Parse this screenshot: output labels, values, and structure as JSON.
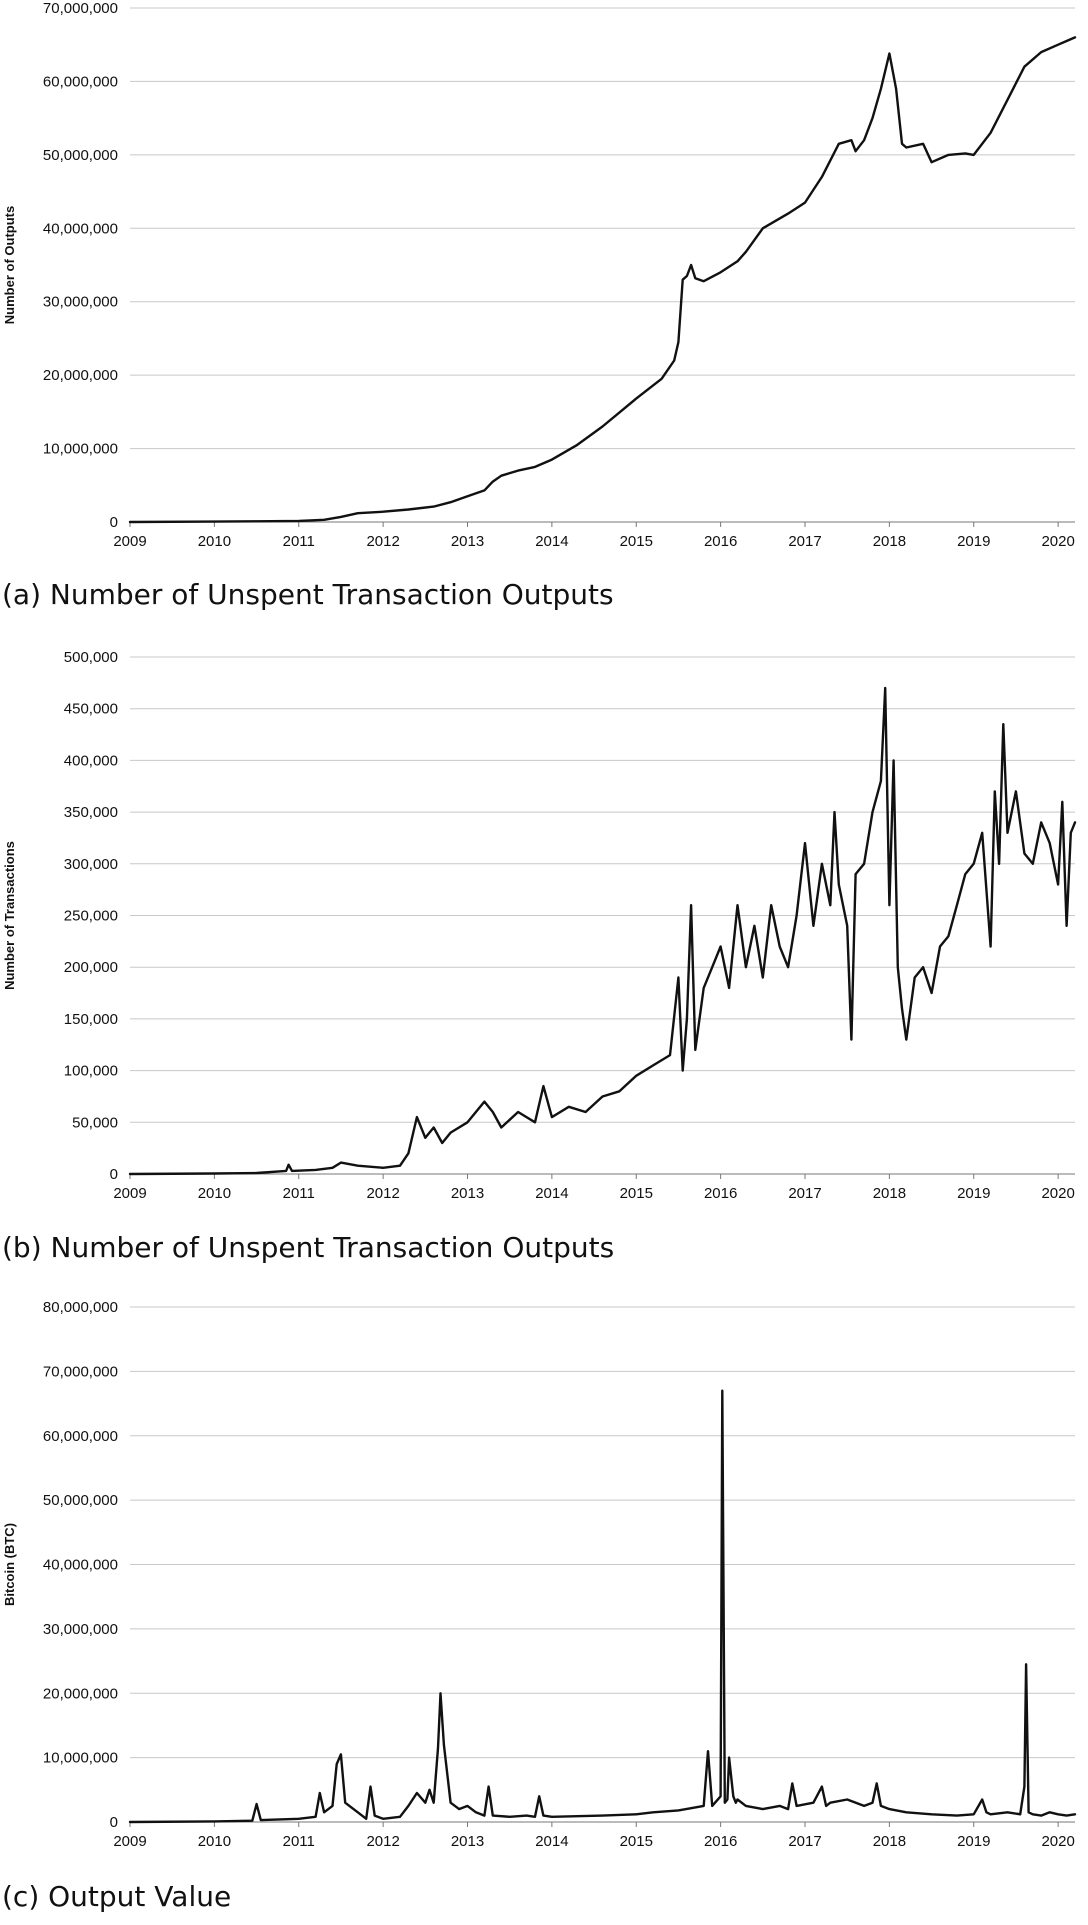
{
  "chart_data": [
    {
      "type": "line",
      "caption": "(a) Number of Unspent Transaction Outputs",
      "ylabel": "Number of Outputs",
      "xlabel": "",
      "xlim": [
        2009,
        2020.2
      ],
      "ylim": [
        0,
        70000000
      ],
      "grid": true,
      "xticks": [
        "2009",
        "2010",
        "2011",
        "2012",
        "2013",
        "2014",
        "2015",
        "2016",
        "2017",
        "2018",
        "2019",
        "2020"
      ],
      "yticks": [
        "0",
        "10,000,000",
        "20,000,000",
        "30,000,000",
        "40,000,000",
        "50,000,000",
        "60,000,000",
        "70,000,000"
      ],
      "series": [
        {
          "x": [
            2009.0,
            2010.0,
            2010.5,
            2011.0,
            2011.3,
            2011.5,
            2011.7,
            2012.0,
            2012.3,
            2012.6,
            2012.8,
            2013.0,
            2013.2,
            2013.3,
            2013.4,
            2013.6,
            2013.8,
            2014.0,
            2014.3,
            2014.6,
            2015.0,
            2015.3,
            2015.45,
            2015.5,
            2015.55,
            2015.6,
            2015.65,
            2015.7,
            2015.8,
            2016.0,
            2016.2,
            2016.3,
            2016.5,
            2016.8,
            2017.0,
            2017.2,
            2017.4,
            2017.55,
            2017.6,
            2017.7,
            2017.8,
            2017.9,
            2018.0,
            2018.08,
            2018.15,
            2018.2,
            2018.4,
            2018.5,
            2018.7,
            2018.9,
            2019.0,
            2019.2,
            2019.4,
            2019.6,
            2019.8,
            2020.0,
            2020.1,
            2020.2
          ],
          "y": [
            0,
            50000,
            100000,
            150000,
            300000,
            700000,
            1200000,
            1400000,
            1700000,
            2100000,
            2700000,
            3500000,
            4300000,
            5500000,
            6300000,
            7000000,
            7500000,
            8500000,
            10500000,
            13000000,
            16800000,
            19500000,
            22000000,
            24500000,
            33000000,
            33500000,
            35000000,
            33200000,
            32800000,
            34000000,
            35500000,
            36800000,
            40000000,
            42000000,
            43500000,
            47000000,
            51500000,
            52000000,
            50500000,
            52000000,
            55000000,
            59000000,
            63800000,
            59000000,
            51500000,
            51000000,
            51500000,
            49000000,
            50000000,
            50200000,
            50000000,
            53000000,
            57500000,
            62000000,
            64000000,
            65000000,
            65500000,
            66000000
          ]
        }
      ]
    },
    {
      "type": "line",
      "caption": "(b) Number of Unspent Transaction Outputs",
      "ylabel": "Number of Transactions",
      "xlabel": "",
      "xlim": [
        2009,
        2020.2
      ],
      "ylim": [
        0,
        500000
      ],
      "grid": true,
      "xticks": [
        "2009",
        "2010",
        "2011",
        "2012",
        "2013",
        "2014",
        "2015",
        "2016",
        "2017",
        "2018",
        "2019",
        "2020"
      ],
      "yticks": [
        "0",
        "50,000",
        "100,000",
        "150,000",
        "200,000",
        "250,000",
        "300,000",
        "350,000",
        "400,000",
        "450,000",
        "500,000"
      ],
      "series": [
        {
          "x": [
            2009.0,
            2010.0,
            2010.5,
            2010.85,
            2010.88,
            2010.92,
            2011.2,
            2011.4,
            2011.5,
            2011.7,
            2012.0,
            2012.2,
            2012.3,
            2012.4,
            2012.5,
            2012.6,
            2012.7,
            2012.8,
            2013.0,
            2013.2,
            2013.3,
            2013.4,
            2013.6,
            2013.8,
            2013.9,
            2014.0,
            2014.2,
            2014.4,
            2014.6,
            2014.8,
            2015.0,
            2015.2,
            2015.4,
            2015.5,
            2015.55,
            2015.6,
            2015.65,
            2015.7,
            2015.8,
            2015.9,
            2016.0,
            2016.1,
            2016.2,
            2016.3,
            2016.4,
            2016.5,
            2016.6,
            2016.7,
            2016.8,
            2016.9,
            2017.0,
            2017.1,
            2017.2,
            2017.3,
            2017.35,
            2017.4,
            2017.5,
            2017.55,
            2017.6,
            2017.7,
            2017.8,
            2017.9,
            2017.95,
            2018.0,
            2018.05,
            2018.1,
            2018.15,
            2018.2,
            2018.3,
            2018.4,
            2018.5,
            2018.6,
            2018.7,
            2018.8,
            2018.9,
            2019.0,
            2019.1,
            2019.2,
            2019.25,
            2019.3,
            2019.35,
            2019.4,
            2019.5,
            2019.6,
            2019.7,
            2019.8,
            2019.9,
            2020.0,
            2020.05,
            2020.1,
            2020.15,
            2020.2
          ],
          "y": [
            0,
            500,
            1000,
            3000,
            9000,
            3000,
            4000,
            6000,
            11000,
            8000,
            6000,
            8000,
            20000,
            55000,
            35000,
            45000,
            30000,
            40000,
            50000,
            70000,
            60000,
            45000,
            60000,
            50000,
            85000,
            55000,
            65000,
            60000,
            75000,
            80000,
            95000,
            105000,
            115000,
            190000,
            100000,
            150000,
            260000,
            120000,
            180000,
            200000,
            220000,
            180000,
            260000,
            200000,
            240000,
            190000,
            260000,
            220000,
            200000,
            250000,
            320000,
            240000,
            300000,
            260000,
            350000,
            280000,
            240000,
            130000,
            290000,
            300000,
            350000,
            380000,
            470000,
            260000,
            400000,
            200000,
            160000,
            130000,
            190000,
            200000,
            175000,
            220000,
            230000,
            260000,
            290000,
            300000,
            330000,
            220000,
            370000,
            300000,
            435000,
            330000,
            370000,
            310000,
            300000,
            340000,
            320000,
            280000,
            360000,
            240000,
            330000,
            340000
          ]
        }
      ]
    },
    {
      "type": "line",
      "caption": "(c) Output Value",
      "ylabel": "Bitcoin (BTC)",
      "xlabel": "",
      "xlim": [
        2009,
        2020.2
      ],
      "ylim": [
        0,
        80000000
      ],
      "grid": true,
      "xticks": [
        "2009",
        "2010",
        "2011",
        "2012",
        "2013",
        "2014",
        "2015",
        "2016",
        "2017",
        "2018",
        "2019",
        "2020"
      ],
      "yticks": [
        "0",
        "10,000,000",
        "20,000,000",
        "30,000,000",
        "40,000,000",
        "50,000,000",
        "60,000,000",
        "70,000,000",
        "80,000,000"
      ],
      "series": [
        {
          "x": [
            2009.0,
            2010.0,
            2010.45,
            2010.5,
            2010.55,
            2011.0,
            2011.2,
            2011.25,
            2011.3,
            2011.4,
            2011.45,
            2011.5,
            2011.55,
            2011.6,
            2011.7,
            2011.8,
            2011.85,
            2011.9,
            2012.0,
            2012.2,
            2012.3,
            2012.4,
            2012.5,
            2012.55,
            2012.6,
            2012.65,
            2012.68,
            2012.72,
            2012.8,
            2012.9,
            2013.0,
            2013.1,
            2013.2,
            2013.25,
            2013.3,
            2013.5,
            2013.7,
            2013.8,
            2013.85,
            2013.9,
            2014.0,
            2014.3,
            2014.6,
            2015.0,
            2015.2,
            2015.5,
            2015.8,
            2015.85,
            2015.9,
            2016.0,
            2016.02,
            2016.05,
            2016.08,
            2016.1,
            2016.15,
            2016.18,
            2016.2,
            2016.3,
            2016.5,
            2016.7,
            2016.8,
            2016.85,
            2016.9,
            2017.1,
            2017.2,
            2017.25,
            2017.3,
            2017.5,
            2017.7,
            2017.8,
            2017.85,
            2017.9,
            2018.0,
            2018.2,
            2018.5,
            2018.8,
            2019.0,
            2019.1,
            2019.15,
            2019.2,
            2019.4,
            2019.55,
            2019.6,
            2019.62,
            2019.65,
            2019.7,
            2019.8,
            2019.9,
            2020.0,
            2020.1,
            2020.2
          ],
          "y": [
            0,
            100000,
            200000,
            2800000,
            300000,
            500000,
            800000,
            4500000,
            1500000,
            2500000,
            9000000,
            10500000,
            3000000,
            2500000,
            1500000,
            500000,
            5500000,
            1000000,
            500000,
            800000,
            2500000,
            4500000,
            3000000,
            5000000,
            3000000,
            11500000,
            20000000,
            12000000,
            3000000,
            2000000,
            2500000,
            1500000,
            1000000,
            5500000,
            1000000,
            800000,
            1000000,
            800000,
            4000000,
            1000000,
            800000,
            900000,
            1000000,
            1200000,
            1500000,
            1800000,
            2500000,
            11000000,
            2500000,
            4000000,
            67000000,
            3000000,
            3500000,
            10000000,
            4000000,
            3000000,
            3500000,
            2500000,
            2000000,
            2500000,
            2000000,
            6000000,
            2500000,
            3000000,
            5500000,
            2500000,
            3000000,
            3500000,
            2500000,
            3000000,
            6000000,
            2500000,
            2000000,
            1500000,
            1200000,
            1000000,
            1200000,
            3500000,
            1500000,
            1200000,
            1500000,
            1200000,
            5500000,
            24500000,
            1500000,
            1200000,
            1000000,
            1500000,
            1200000,
            1000000,
            1200000
          ]
        }
      ]
    }
  ]
}
